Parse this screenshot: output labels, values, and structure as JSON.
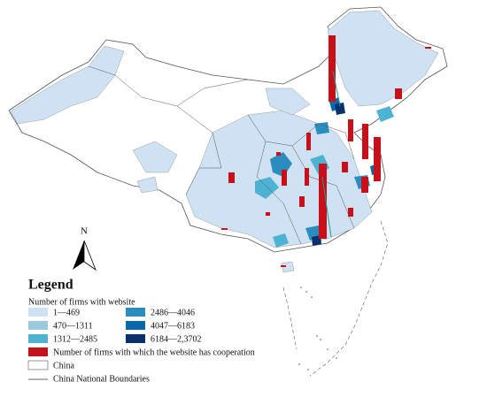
{
  "north": {
    "label": "N"
  },
  "legend": {
    "title": "Legend",
    "subtitle": "Number of firms with website",
    "classes": [
      "1—469",
      "2486—4046",
      "470—1311",
      "4047—6183",
      "1312—2485",
      "6184—2,3702"
    ],
    "cooperation": "Number of firms with which the website has cooperation",
    "china": "China",
    "boundaries": "China National Boundaries"
  }
}
